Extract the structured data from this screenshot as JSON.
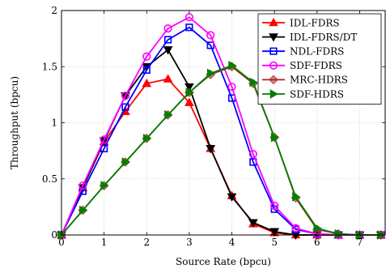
{
  "chart_data": {
    "type": "line",
    "xlabel": "Source Rate (bpcu)",
    "ylabel": "Throughput (bpcu)",
    "xlim": [
      0,
      7.6
    ],
    "ylim": [
      0,
      2
    ],
    "x_ticks": [
      "0",
      "1",
      "2",
      "3",
      "4",
      "5",
      "6",
      "7"
    ],
    "y_ticks": [
      "0",
      "0.5",
      "1",
      "1.5",
      "2"
    ],
    "grid": true,
    "legend_position": "top-right",
    "x": [
      0,
      0.5,
      1,
      1.5,
      2,
      2.5,
      3,
      3.5,
      4,
      4.5,
      5,
      5.5,
      6,
      6.5,
      7,
      7.5
    ],
    "series": [
      {
        "name": "IDL-FDRS",
        "color": "#ff0000",
        "marker": "triangle-up",
        "values": [
          0,
          0.42,
          0.83,
          1.1,
          1.35,
          1.39,
          1.18,
          0.77,
          0.35,
          0.1,
          0.02,
          0,
          0,
          0,
          0,
          0
        ]
      },
      {
        "name": "IDL-FDRS/DT",
        "color": "#000000",
        "marker": "triangle-down",
        "values": [
          0,
          0.42,
          0.84,
          1.24,
          1.5,
          1.65,
          1.32,
          0.77,
          0.34,
          0.11,
          0.03,
          0,
          0,
          0,
          0,
          0
        ]
      },
      {
        "name": "NDL-FDRS",
        "color": "#0000ff",
        "marker": "square",
        "values": [
          0,
          0.39,
          0.77,
          1.14,
          1.47,
          1.74,
          1.85,
          1.69,
          1.22,
          0.65,
          0.23,
          0.05,
          0.01,
          0,
          0,
          0
        ]
      },
      {
        "name": "SDF-FDRS",
        "color": "#ff00ff",
        "marker": "circle",
        "values": [
          0,
          0.44,
          0.85,
          1.24,
          1.59,
          1.84,
          1.94,
          1.78,
          1.32,
          0.72,
          0.26,
          0.06,
          0.01,
          0,
          0,
          0
        ]
      },
      {
        "name": "MRC-HDRS",
        "color": "#b22222",
        "marker": "diamond",
        "values": [
          0,
          0.22,
          0.44,
          0.65,
          0.86,
          1.07,
          1.27,
          1.43,
          1.5,
          1.35,
          0.87,
          0.33,
          0.05,
          0.01,
          0,
          0
        ]
      },
      {
        "name": "SDF-HDRS",
        "color": "#008000",
        "marker": "triangle-right",
        "values": [
          0,
          0.22,
          0.44,
          0.65,
          0.86,
          1.07,
          1.27,
          1.44,
          1.51,
          1.36,
          0.87,
          0.34,
          0.06,
          0.01,
          0,
          0
        ]
      }
    ]
  }
}
